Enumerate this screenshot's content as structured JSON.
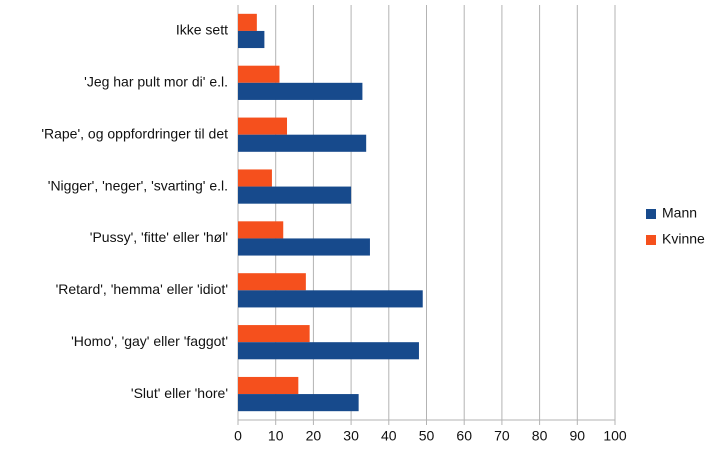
{
  "chart_data": {
    "type": "bar",
    "orientation": "horizontal",
    "categories": [
      "Ikke sett",
      "'Jeg har pult mor di' e.l.",
      "'Rape', og oppfordringer til det",
      "'Nigger', 'neger', 'svarting' e.l.",
      "'Pussy', 'fitte' eller 'høl'",
      "'Retard', 'hemma' eller 'idiot'",
      "'Homo', 'gay' eller 'faggot'",
      "'Slut' eller 'hore'"
    ],
    "series": [
      {
        "name": "Mann",
        "color": "#174a8c",
        "values": [
          7,
          33,
          34,
          30,
          35,
          49,
          48,
          32
        ]
      },
      {
        "name": "Kvinne",
        "color": "#f5501d",
        "values": [
          5,
          11,
          13,
          9,
          12,
          18,
          19,
          16
        ]
      }
    ],
    "xlim": [
      0,
      100
    ],
    "xticks": [
      0,
      10,
      20,
      30,
      40,
      50,
      60,
      70,
      80,
      90,
      100
    ],
    "grid": true,
    "legend": "right"
  }
}
